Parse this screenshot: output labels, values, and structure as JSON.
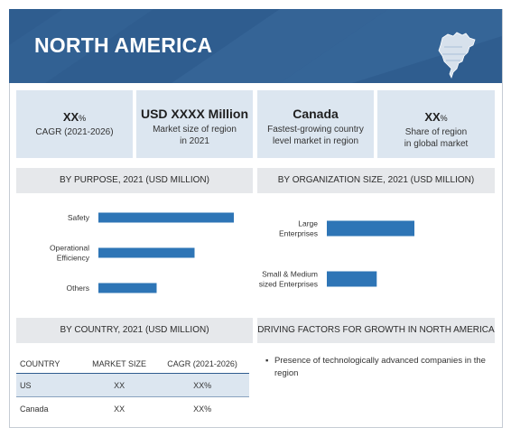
{
  "banner": {
    "title": "NORTH AMERICA"
  },
  "kpis": [
    {
      "value": "XX",
      "unit": "%",
      "label": "CAGR (2021-2026)"
    },
    {
      "value": "USD XXXX Million",
      "unit": "",
      "label": "Market size of region\nin 2021"
    },
    {
      "value": "Canada",
      "unit": "",
      "label": "Fastest-growing country\nlevel market in region"
    },
    {
      "value": "XX",
      "unit": "%",
      "label": "Share of region\nin global market"
    }
  ],
  "sections": {
    "purpose": "BY PURPOSE, 2021 (USD MILLION)",
    "org_size": "BY ORGANIZATION SIZE, 2021 (USD MILLION)",
    "country": "BY COUNTRY, 2021 (USD MILLION)",
    "drivers": "DRIVING FACTORS FOR GROWTH IN NORTH AMERICA"
  },
  "chart_data": [
    {
      "type": "bar",
      "orientation": "horizontal",
      "title": "BY PURPOSE, 2021 (USD MILLION)",
      "categories": [
        "Safety",
        "Operational\nEfficiency",
        "Others"
      ],
      "values": [
        100,
        71,
        43
      ],
      "xlim": [
        0,
        100
      ],
      "grid": false,
      "color": "#2e75b6"
    },
    {
      "type": "bar",
      "orientation": "horizontal",
      "title": "BY ORGANIZATION SIZE, 2021 (USD MILLION)",
      "categories": [
        "Large\nEnterprises",
        "Small & Medium\nsized Enterprises"
      ],
      "values": [
        100,
        57
      ],
      "xlim": [
        0,
        100
      ],
      "grid": false,
      "color": "#2e75b6"
    }
  ],
  "country_table": {
    "headers": [
      "COUNTRY",
      "MARKET SIZE",
      "CAGR (2021-2026)"
    ],
    "rows": [
      [
        "US",
        "XX",
        "XX%"
      ],
      [
        "Canada",
        "XX",
        "XX%"
      ]
    ]
  },
  "drivers": [
    "Presence of technologically advanced companies in the region"
  ],
  "colors": {
    "banner": "#2f5d8f",
    "bar": "#2e75b6",
    "kpi_bg": "#dce6f0",
    "section_bg": "#e6e8eb"
  }
}
